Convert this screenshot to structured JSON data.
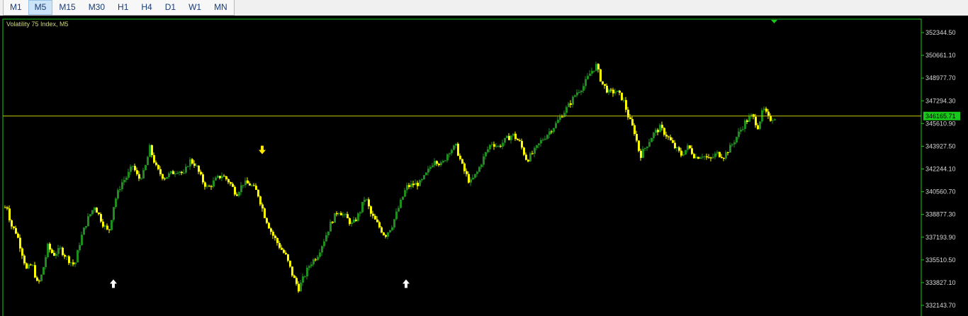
{
  "toolbar": {
    "timeframes": [
      "M1",
      "M5",
      "M15",
      "M30",
      "H1",
      "H4",
      "D1",
      "W1",
      "MN"
    ],
    "active": "M5"
  },
  "chart": {
    "symbol_label": "Volatility 75 Index, M5",
    "current_price": "346165.71",
    "colors": {
      "background": "#000000",
      "frame": "#19c919",
      "bull": "#1f8c1f",
      "bear": "#ffff00",
      "price_line": "#c7c700",
      "price_tag_bg": "#19c919",
      "arrow_down": "#ffe600",
      "arrow_up": "#ffffff"
    },
    "signal_icons": [
      "arrow-down-icon",
      "arrow-up-icon"
    ]
  },
  "chart_data": {
    "type": "candlestick",
    "ylim": [
      332143.7,
      352344.5
    ],
    "y_ticks": [
      "352344.50",
      "350661.10",
      "348977.70",
      "347294.30",
      "345610.90",
      "343927.50",
      "342244.10",
      "340560.70",
      "338877.30",
      "337193.90",
      "335510.50",
      "333827.10",
      "332143.70"
    ],
    "last_price": 346165.71,
    "path": [
      [
        0,
        338500
      ],
      [
        8,
        339700
      ],
      [
        14,
        338100
      ],
      [
        22,
        337500
      ],
      [
        30,
        336000
      ],
      [
        36,
        334800
      ],
      [
        44,
        335200
      ],
      [
        52,
        333600
      ],
      [
        58,
        334500
      ],
      [
        66,
        336500
      ],
      [
        74,
        335900
      ],
      [
        84,
        336300
      ],
      [
        94,
        335600
      ],
      [
        104,
        335100
      ],
      [
        112,
        337000
      ],
      [
        122,
        338500
      ],
      [
        132,
        339500
      ],
      [
        144,
        338200
      ],
      [
        152,
        337500
      ],
      [
        160,
        339800
      ],
      [
        170,
        341200
      ],
      [
        178,
        341700
      ],
      [
        186,
        342500
      ],
      [
        194,
        341500
      ],
      [
        202,
        342000
      ],
      [
        210,
        343800
      ],
      [
        220,
        342200
      ],
      [
        230,
        341600
      ],
      [
        240,
        341900
      ],
      [
        250,
        342200
      ],
      [
        258,
        341800
      ],
      [
        266,
        342900
      ],
      [
        274,
        342600
      ],
      [
        284,
        341400
      ],
      [
        292,
        340800
      ],
      [
        302,
        341400
      ],
      [
        312,
        341800
      ],
      [
        322,
        341300
      ],
      [
        332,
        340400
      ],
      [
        342,
        341200
      ],
      [
        352,
        341100
      ],
      [
        362,
        340500
      ],
      [
        372,
        338800
      ],
      [
        382,
        337500
      ],
      [
        392,
        336600
      ],
      [
        402,
        335800
      ],
      [
        412,
        334300
      ],
      [
        420,
        333400
      ],
      [
        428,
        334300
      ],
      [
        436,
        335200
      ],
      [
        446,
        335800
      ],
      [
        456,
        337000
      ],
      [
        466,
        338300
      ],
      [
        476,
        339200
      ],
      [
        486,
        338700
      ],
      [
        496,
        338100
      ],
      [
        506,
        339000
      ],
      [
        514,
        340200
      ],
      [
        522,
        338900
      ],
      [
        532,
        338100
      ],
      [
        542,
        337300
      ],
      [
        552,
        338100
      ],
      [
        562,
        339500
      ],
      [
        572,
        340900
      ],
      [
        582,
        341100
      ],
      [
        592,
        341200
      ],
      [
        602,
        342000
      ],
      [
        612,
        343000
      ],
      [
        622,
        342500
      ],
      [
        632,
        343600
      ],
      [
        642,
        343900
      ],
      [
        652,
        342300
      ],
      [
        662,
        341200
      ],
      [
        672,
        342000
      ],
      [
        682,
        343200
      ],
      [
        692,
        344200
      ],
      [
        702,
        343900
      ],
      [
        712,
        344400
      ],
      [
        722,
        344800
      ],
      [
        732,
        344200
      ],
      [
        742,
        342900
      ],
      [
        752,
        343500
      ],
      [
        762,
        344300
      ],
      [
        772,
        344900
      ],
      [
        782,
        345500
      ],
      [
        792,
        346300
      ],
      [
        802,
        347000
      ],
      [
        812,
        347900
      ],
      [
        822,
        348400
      ],
      [
        832,
        349400
      ],
      [
        840,
        349900
      ],
      [
        848,
        348600
      ],
      [
        858,
        347900
      ],
      [
        868,
        348000
      ],
      [
        878,
        347400
      ],
      [
        886,
        346000
      ],
      [
        894,
        345000
      ],
      [
        902,
        343200
      ],
      [
        910,
        343900
      ],
      [
        920,
        344800
      ],
      [
        930,
        345300
      ],
      [
        940,
        344700
      ],
      [
        950,
        343900
      ],
      [
        960,
        343300
      ],
      [
        970,
        343900
      ],
      [
        980,
        343100
      ],
      [
        990,
        343300
      ],
      [
        1000,
        342900
      ],
      [
        1010,
        343400
      ],
      [
        1020,
        343200
      ],
      [
        1030,
        343900
      ],
      [
        1040,
        344800
      ],
      [
        1050,
        345700
      ],
      [
        1060,
        346200
      ],
      [
        1068,
        345400
      ],
      [
        1076,
        346700
      ],
      [
        1084,
        345900
      ],
      [
        1092,
        346100
      ]
    ],
    "signals": [
      {
        "type": "sell",
        "x": 370,
        "price": 343600
      },
      {
        "type": "buy",
        "x": 160,
        "price": 333800
      },
      {
        "type": "buy",
        "x": 573,
        "price": 333800
      }
    ]
  }
}
